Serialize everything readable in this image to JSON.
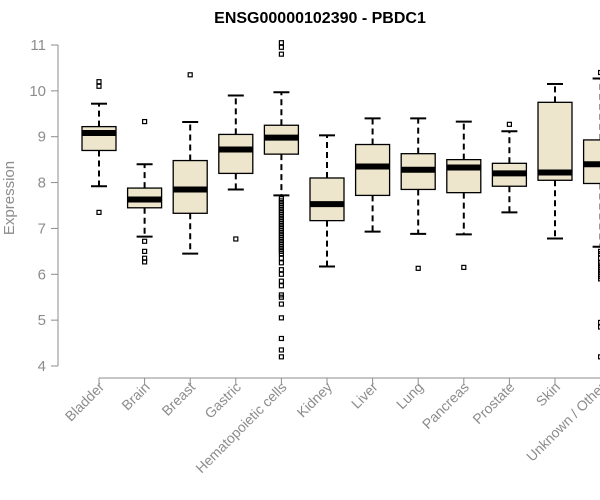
{
  "chart_data": {
    "type": "box",
    "title": "ENSG00000102390 - PBDC1",
    "ylabel": "Expression",
    "ylim": [
      4,
      11
    ],
    "yticks": [
      4,
      5,
      6,
      7,
      8,
      9,
      10,
      11
    ],
    "categories": [
      "Bladder",
      "Brain",
      "Breast",
      "Gastric",
      "Hematopoietic cells",
      "Kidney",
      "Liver",
      "Lung",
      "Pancreas",
      "Prostate",
      "Skin",
      "Unknown / Other"
    ],
    "box_fill": "#ede6cc",
    "series": [
      {
        "category": "Bladder",
        "whisker_low": 7.92,
        "q1": 8.7,
        "median": 9.08,
        "q3": 9.22,
        "whisker_high": 9.72,
        "outliers": [
          10.2,
          10.1,
          7.35
        ]
      },
      {
        "category": "Brain",
        "whisker_low": 6.82,
        "q1": 7.45,
        "median": 7.63,
        "q3": 7.88,
        "whisker_high": 8.4,
        "outliers": [
          9.33,
          6.72,
          6.5,
          6.35,
          6.27
        ]
      },
      {
        "category": "Breast",
        "whisker_low": 6.45,
        "q1": 7.33,
        "median": 7.85,
        "q3": 8.48,
        "whisker_high": 9.32,
        "outliers": [
          10.35
        ]
      },
      {
        "category": "Gastric",
        "whisker_low": 7.85,
        "q1": 8.2,
        "median": 8.72,
        "q3": 9.05,
        "whisker_high": 9.9,
        "outliers": [
          6.77
        ]
      },
      {
        "category": "Hematopoietic cells",
        "whisker_low": 7.72,
        "q1": 8.62,
        "median": 8.98,
        "q3": 9.25,
        "whisker_high": 9.97,
        "outliers": [
          11.05,
          10.95,
          10.8,
          7.65,
          7.6,
          7.55,
          7.5,
          7.45,
          7.4,
          7.35,
          7.3,
          7.25,
          7.2,
          7.15,
          7.1,
          7.05,
          7.0,
          6.95,
          6.9,
          6.85,
          6.8,
          6.75,
          6.7,
          6.65,
          6.6,
          6.55,
          6.5,
          6.45,
          6.35,
          6.25,
          6.1,
          6.0,
          5.85,
          5.75,
          5.55,
          5.5,
          5.35,
          5.05,
          4.6,
          4.35,
          4.2
        ]
      },
      {
        "category": "Kidney",
        "whisker_low": 6.17,
        "q1": 7.17,
        "median": 7.53,
        "q3": 8.1,
        "whisker_high": 9.03,
        "outliers": []
      },
      {
        "category": "Liver",
        "whisker_low": 6.93,
        "q1": 7.72,
        "median": 8.35,
        "q3": 8.83,
        "whisker_high": 9.4,
        "outliers": []
      },
      {
        "category": "Lung",
        "whisker_low": 6.88,
        "q1": 7.85,
        "median": 8.28,
        "q3": 8.63,
        "whisker_high": 9.4,
        "outliers": [
          6.13
        ]
      },
      {
        "category": "Pancreas",
        "whisker_low": 6.87,
        "q1": 7.78,
        "median": 8.33,
        "q3": 8.5,
        "whisker_high": 9.33,
        "outliers": [
          6.15
        ]
      },
      {
        "category": "Prostate",
        "whisker_low": 7.35,
        "q1": 7.92,
        "median": 8.2,
        "q3": 8.42,
        "whisker_high": 9.12,
        "outliers": [
          9.27
        ]
      },
      {
        "category": "Skin",
        "whisker_low": 6.78,
        "q1": 8.05,
        "median": 8.22,
        "q3": 9.75,
        "whisker_high": 10.15,
        "outliers": []
      },
      {
        "category": "Unknown / Other",
        "whisker_low": 6.6,
        "q1": 7.98,
        "median": 8.4,
        "q3": 8.93,
        "whisker_high": 10.27,
        "outliers": [
          10.4,
          6.5,
          6.45,
          6.35,
          6.25,
          6.2,
          6.15,
          6.1,
          6.05,
          6.0,
          5.95,
          5.9,
          4.95,
          4.85,
          4.2
        ]
      }
    ]
  }
}
